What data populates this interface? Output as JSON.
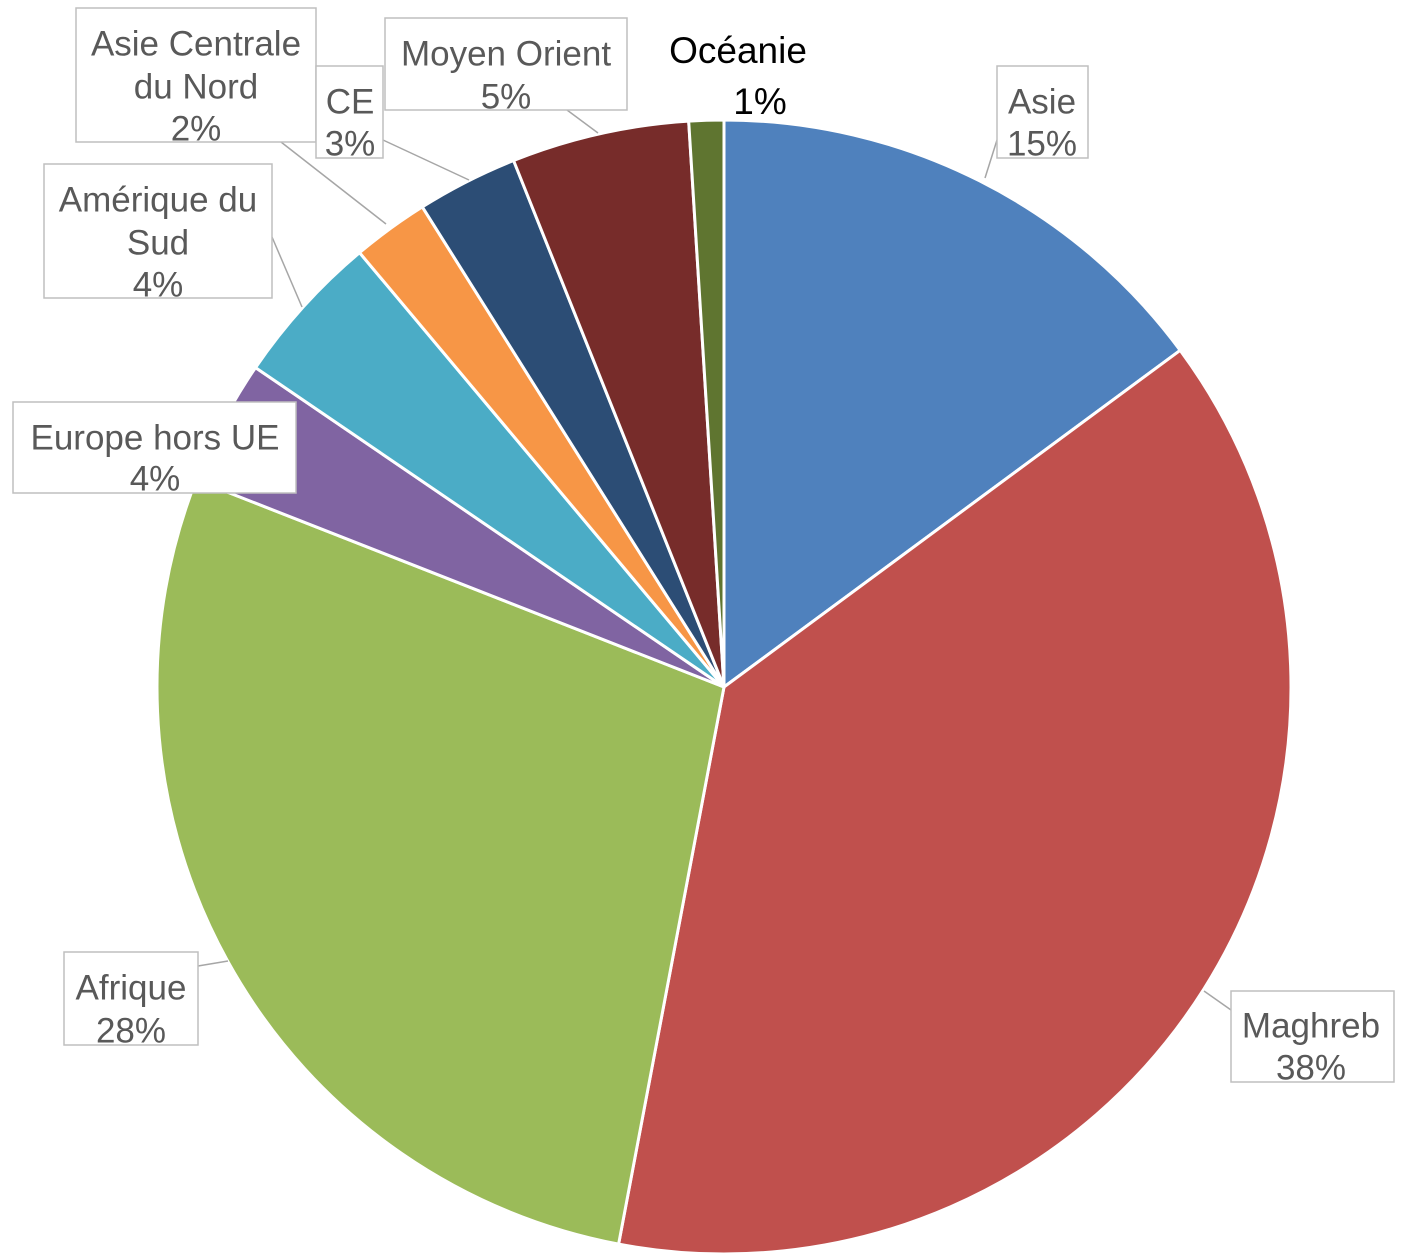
{
  "chart_data": {
    "type": "pie",
    "start_angle_deg": 0,
    "direction": "clockwise",
    "slices": [
      {
        "name": "Asie",
        "percent_label": "15%",
        "value": 15.0,
        "color": "#4f81bd"
      },
      {
        "name": "Maghreb",
        "percent_label": "38%",
        "value": 38.4,
        "color": "#c0504d"
      },
      {
        "name": "Afrique",
        "percent_label": "28%",
        "value": 28.2,
        "color": "#9bbb59"
      },
      {
        "name": "Europe hors UE",
        "percent_label": "4%",
        "value": 3.6,
        "color": "#8064a2"
      },
      {
        "name": "Amérique du Sud",
        "percent_label": "4%",
        "value": 4.4,
        "color": "#4bacc6"
      },
      {
        "name": "Asie Centrale du Nord",
        "percent_label": "2%",
        "value": 2.2,
        "color": "#f79646"
      },
      {
        "name": "CE",
        "percent_label": "3%",
        "value": 2.9,
        "color": "#2c4d75"
      },
      {
        "name": "Moyen Orient",
        "percent_label": "5%",
        "value": 5.1,
        "color": "#772c2a"
      },
      {
        "name": "Océanie",
        "percent_label": "1%",
        "value": 1.0,
        "color": "#5f7530"
      }
    ]
  }
}
